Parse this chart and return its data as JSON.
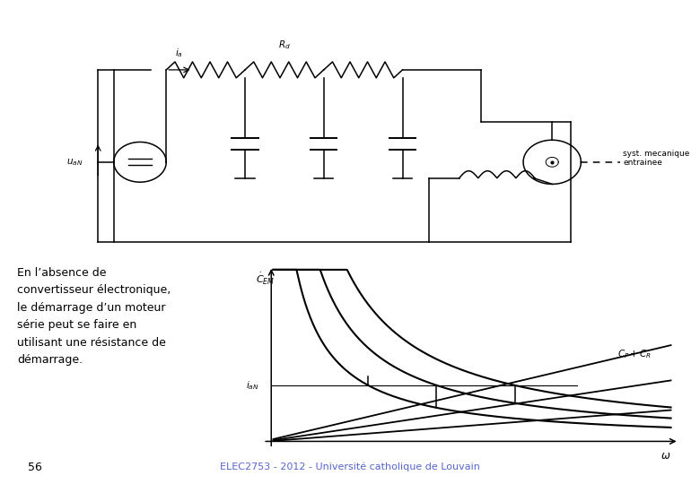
{
  "bg_color": "#ffffff",
  "text_color": "#000000",
  "title_text": "En l’absence de\nconvertisseur électronique,\nle démarrage d’un moteur\nsérie peut se faire en\nutilisant une résistance de\ndémarrage.",
  "footer_text": "ELEC2753 - 2012 - Université catholique de Louvain",
  "page_number": "56",
  "circuit_label_ia": "i_a",
  "circuit_label_rd": "R_d",
  "circuit_label_uaN": "u_aN",
  "circuit_label_syst": "syst. mecanique\nentrainee"
}
